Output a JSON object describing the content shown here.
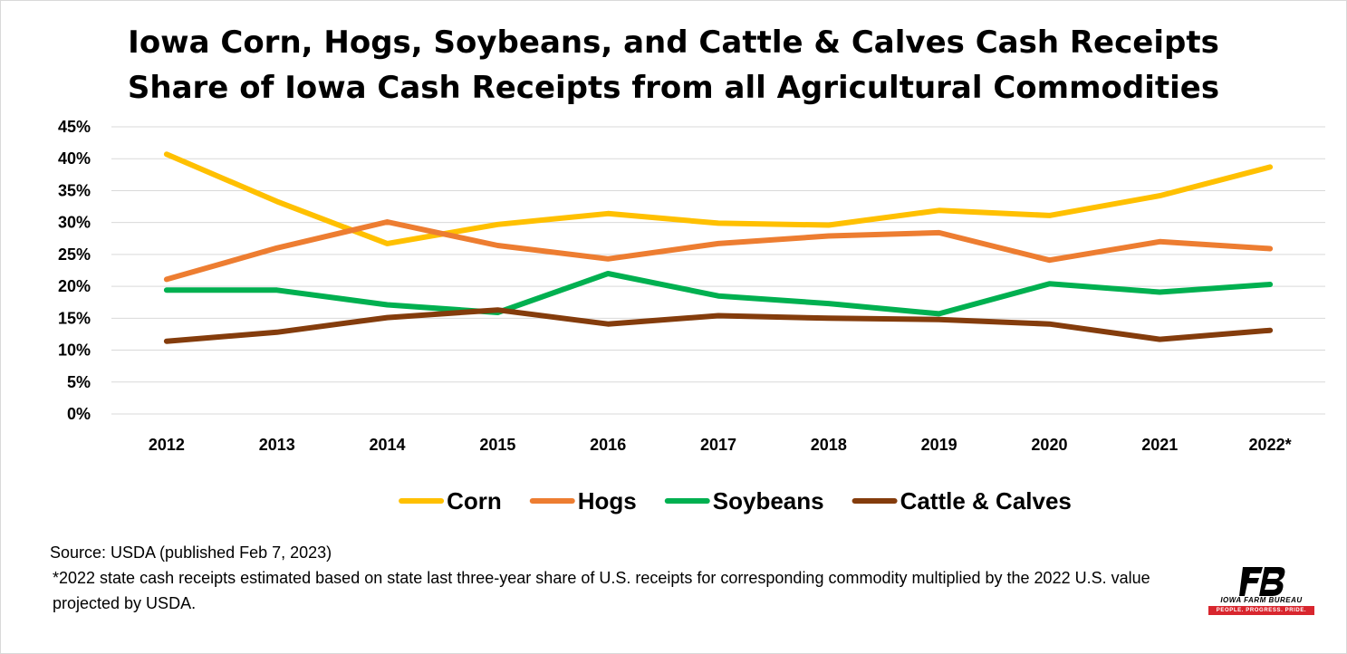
{
  "chart_data": {
    "type": "line",
    "title": "Iowa Corn, Hogs, Soybeans, and Cattle & Calves Cash Receipts Share of Iowa Cash Receipts from all Agricultural Commodities",
    "xlabel": "",
    "ylabel": "",
    "categories": [
      "2012",
      "2013",
      "2014",
      "2015",
      "2016",
      "2017",
      "2018",
      "2019",
      "2020",
      "2021",
      "2022*"
    ],
    "ylim": [
      0,
      45
    ],
    "yticks": [
      "0%",
      "5%",
      "10%",
      "15%",
      "20%",
      "25%",
      "30%",
      "35%",
      "40%",
      "45%"
    ],
    "grid": "horizontal",
    "legend_position": "bottom",
    "series": [
      {
        "name": "Corn",
        "color": "#FFC000",
        "values": [
          40.7,
          33.3,
          26.7,
          29.7,
          31.4,
          29.9,
          29.6,
          31.9,
          31.1,
          34.2,
          38.7
        ]
      },
      {
        "name": "Hogs",
        "color": "#ED7D31",
        "values": [
          21.1,
          26.0,
          30.1,
          26.4,
          24.3,
          26.7,
          27.9,
          28.4,
          24.1,
          27.0,
          25.9
        ]
      },
      {
        "name": "Soybeans",
        "color": "#00B050",
        "values": [
          19.4,
          19.4,
          17.1,
          15.9,
          22.0,
          18.5,
          17.3,
          15.7,
          20.4,
          19.1,
          20.3
        ]
      },
      {
        "name": "Cattle & Calves",
        "color": "#843C0C",
        "values": [
          11.4,
          12.8,
          15.1,
          16.3,
          14.1,
          15.4,
          15.0,
          14.8,
          14.1,
          11.7,
          13.1
        ]
      }
    ]
  },
  "source": "Source: USDA (published Feb 7, 2023)",
  "footnote": "*2022 state cash receipts estimated based on state last three-year share of U.S. receipts for corresponding commodity multiplied by the 2022 U.S. value projected by USDA.",
  "logo": {
    "name": "IOWA FARM BUREAU",
    "tagline": "PEOPLE. PROGRESS. PRIDE.",
    "color": "#D8262E"
  },
  "colors": {
    "grid": "#D9D9D9"
  }
}
